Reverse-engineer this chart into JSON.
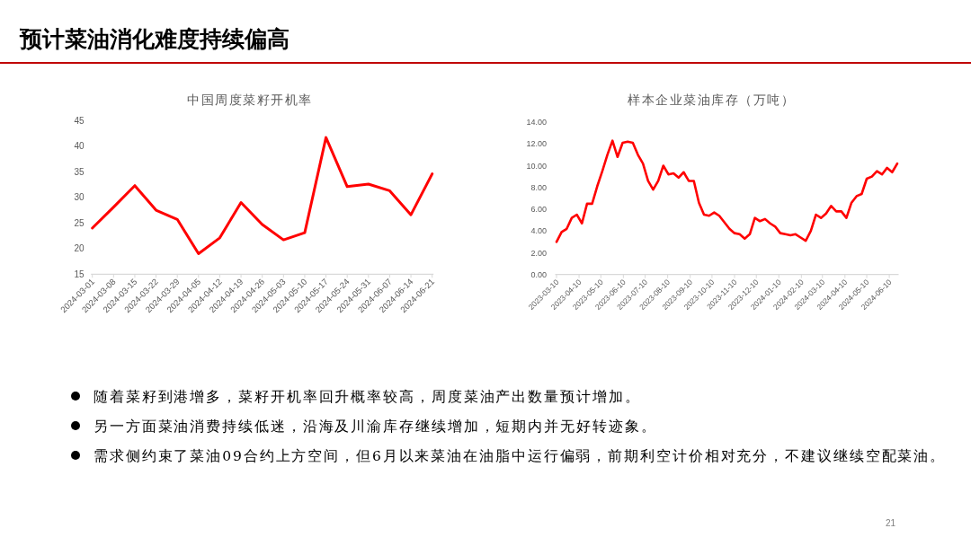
{
  "chart_data": [
    {
      "type": "other",
      "title": "预计菜油消化难度持续偏高"
    },
    {
      "type": "line",
      "title": "中国周度菜籽开机率",
      "categories": [
        "2024-03-01",
        "2024-03-08",
        "2024-03-15",
        "2024-03-22",
        "2024-03-29",
        "2024-04-05",
        "2024-04-12",
        "2024-04-19",
        "2024-04-26",
        "2024-05-03",
        "2024-05-10",
        "2024-05-17",
        "2024-05-24",
        "2024-05-31",
        "2024-06-07",
        "2024-06-14",
        "2024-06-21"
      ],
      "series": [
        {
          "color": "#ff0000",
          "values": [
            24.0,
            28.1,
            32.3,
            27.5,
            25.7,
            19.0,
            22.1,
            29.0,
            24.7,
            21.7,
            23.1,
            41.7,
            32.1,
            32.6,
            31.3,
            26.6,
            34.6
          ]
        }
      ],
      "ylim": [
        15,
        45
      ],
      "yticks": [
        15,
        20,
        25,
        30,
        35,
        40,
        45
      ]
    },
    {
      "type": "line",
      "title": "样本企业菜油库存（万吨）",
      "x": [
        "2023-03-10",
        "2023-03-17",
        "2023-03-24",
        "2023-03-31",
        "2023-04-07",
        "2023-04-14",
        "2023-04-21",
        "2023-04-28",
        "2023-05-05",
        "2023-05-12",
        "2023-05-19",
        "2023-05-26",
        "2023-06-02",
        "2023-06-09",
        "2023-06-16",
        "2023-06-23",
        "2023-06-30",
        "2023-07-07",
        "2023-07-14",
        "2023-07-21",
        "2023-07-28",
        "2023-08-04",
        "2023-08-11",
        "2023-08-18",
        "2023-08-25",
        "2023-09-01",
        "2023-09-08",
        "2023-09-15",
        "2023-09-22",
        "2023-09-29",
        "2023-10-06",
        "2023-10-13",
        "2023-10-20",
        "2023-10-27",
        "2023-11-03",
        "2023-11-10",
        "2023-11-17",
        "2023-11-24",
        "2023-12-01",
        "2023-12-08",
        "2023-12-15",
        "2023-12-22",
        "2023-12-29",
        "2024-01-05",
        "2024-01-12",
        "2024-01-19",
        "2024-01-26",
        "2024-02-02",
        "2024-02-09",
        "2024-02-16",
        "2024-02-23",
        "2024-03-01",
        "2024-03-08",
        "2024-03-15",
        "2024-03-22",
        "2024-03-29",
        "2024-04-05",
        "2024-04-12",
        "2024-04-19",
        "2024-04-26",
        "2024-05-03",
        "2024-05-10",
        "2024-05-17",
        "2024-05-24",
        "2024-05-31",
        "2024-06-07",
        "2024-06-14",
        "2024-06-21"
      ],
      "series": [
        {
          "color": "#ff0000",
          "values": [
            3.0,
            3.9,
            4.2,
            5.2,
            5.5,
            4.7,
            6.5,
            6.5,
            8.1,
            9.5,
            11.0,
            12.3,
            10.8,
            12.1,
            12.2,
            12.1,
            11.0,
            10.2,
            8.6,
            7.8,
            8.6,
            10.0,
            9.2,
            9.3,
            8.9,
            9.4,
            8.6,
            8.6,
            6.6,
            5.5,
            5.4,
            5.7,
            5.4,
            4.8,
            4.2,
            3.8,
            3.7,
            3.3,
            3.7,
            5.2,
            4.9,
            5.1,
            4.7,
            4.4,
            3.8,
            3.7,
            3.6,
            3.7,
            3.4,
            3.1,
            4.0,
            5.5,
            5.2,
            5.6,
            6.3,
            5.8,
            5.8,
            5.2,
            6.6,
            7.2,
            7.4,
            8.8,
            9.0,
            9.5,
            9.2,
            9.8,
            9.4,
            10.2
          ]
        }
      ],
      "xlim": [
        "2023-03-10",
        "2024-06-21"
      ],
      "xticks": [
        "2023-03-10",
        "2023-04-10",
        "2023-05-10",
        "2023-06-10",
        "2023-07-10",
        "2023-08-10",
        "2023-09-10",
        "2023-10-10",
        "2023-11-10",
        "2023-12-10",
        "2024-01-10",
        "2024-02-10",
        "2024-03-10",
        "2024-04-10",
        "2024-05-10",
        "2024-06-10"
      ],
      "ylim": [
        0,
        14
      ],
      "yticks": [
        {
          "value": 0,
          "label": "0.00"
        },
        {
          "value": 2,
          "label": "2.00"
        },
        {
          "value": 4,
          "label": "4.00"
        },
        {
          "value": 6,
          "label": "6.00"
        },
        {
          "value": 8,
          "label": "8.00"
        },
        {
          "value": 10,
          "label": "10.00"
        },
        {
          "value": 12,
          "label": "12.00"
        },
        {
          "value": 14,
          "label": "14.00"
        }
      ]
    },
    {
      "type": "other",
      "annotations": [
        "随着菜籽到港增多，菜籽开机率回升概率较高，周度菜油产出数量预计增加。",
        "另一方面菜油消费持续低迷，沿海及川渝库存继续增加，短期内并无好转迹象。",
        "需求侧约束了菜油09合约上方空间，但6月以来菜油在油脂中运行偏弱，前期利空计价相对充分，不建议继续空配菜油。"
      ]
    },
    {
      "type": "other",
      "annotations": [
        "21"
      ]
    }
  ]
}
